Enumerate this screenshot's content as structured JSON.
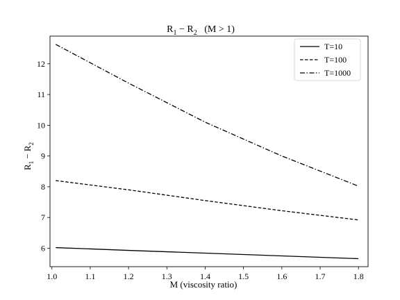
{
  "chart_data": {
    "type": "line",
    "title": {
      "main": "R",
      "sub1": "1",
      "mid": " − R",
      "sub2": "2",
      "tail": "   (M > 1)"
    },
    "xlabel": "M (viscosity ratio)",
    "ylabel": {
      "main": "R",
      "sub1": "1",
      "mid": " − R",
      "sub2": "2"
    },
    "xlim": [
      0.995,
      1.825
    ],
    "ylim": [
      5.4,
      12.9
    ],
    "xticks": [
      1.0,
      1.1,
      1.2,
      1.3,
      1.4,
      1.5,
      1.6,
      1.7,
      1.8
    ],
    "yticks": [
      6,
      7,
      8,
      9,
      10,
      11,
      12
    ],
    "grid": false,
    "legend_position": "top-right",
    "x": [
      1.01,
      1.2,
      1.4,
      1.6,
      1.8
    ],
    "series": [
      {
        "name": "T=10",
        "color": "#000000",
        "dash": "solid",
        "values": [
          6.02,
          5.93,
          5.84,
          5.75,
          5.66
        ]
      },
      {
        "name": "T=100",
        "color": "#000000",
        "dash": "dashed",
        "values": [
          8.2,
          7.9,
          7.55,
          7.22,
          6.92
        ]
      },
      {
        "name": "T=1000",
        "color": "#000000",
        "dash": "dashdot",
        "values": [
          12.63,
          11.37,
          10.1,
          9.0,
          8.02
        ]
      }
    ]
  }
}
